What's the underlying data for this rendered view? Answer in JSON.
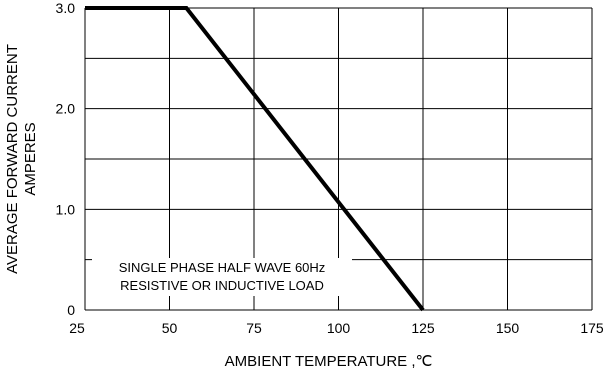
{
  "chart_data": {
    "type": "line",
    "title": "",
    "ylabel_line1": "AVERAGE FORWARD CURRENT",
    "ylabel_line2": "AMPERES",
    "xlabel": "AMBIENT TEMPERATURE ,℃",
    "xlim": [
      25,
      175
    ],
    "ylim": [
      0,
      3.0
    ],
    "x_ticks": [
      {
        "value": 25,
        "label": "25"
      },
      {
        "value": 50,
        "label": "50"
      },
      {
        "value": 75,
        "label": "75"
      },
      {
        "value": 100,
        "label": "100"
      },
      {
        "value": 125,
        "label": "125"
      },
      {
        "value": 150,
        "label": "150"
      },
      {
        "value": 175,
        "label": "175"
      }
    ],
    "y_ticks": [
      {
        "value": 0,
        "label": "0"
      },
      {
        "value": 1.0,
        "label": "1.0"
      },
      {
        "value": 2.0,
        "label": "2.0"
      },
      {
        "value": 3.0,
        "label": "3.0"
      }
    ],
    "grid": true,
    "series": [
      {
        "x": [
          25,
          55,
          125
        ],
        "y": [
          3.0,
          3.0,
          0
        ],
        "color": "#000000"
      }
    ],
    "annotation": {
      "line1": "SINGLE PHASE HALF WAVE 60Hz",
      "line2": "RESISTIVE OR INDUCTIVE LOAD"
    }
  }
}
